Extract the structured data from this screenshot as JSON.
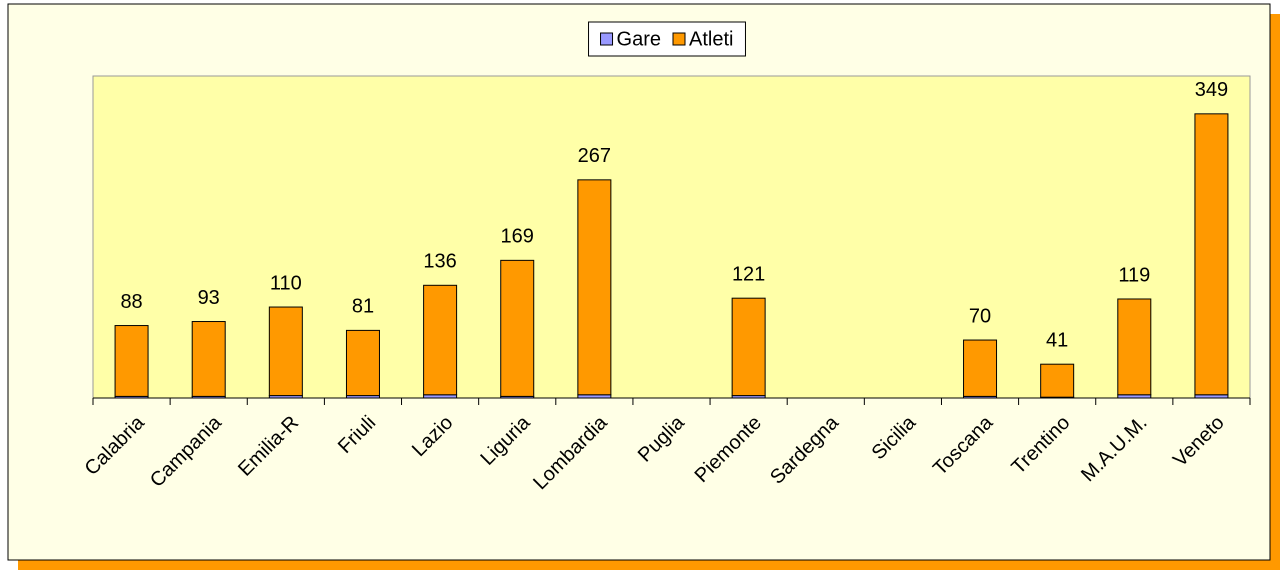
{
  "chart_data": {
    "type": "stacked_bar",
    "categories": [
      "Calabria",
      "Campania",
      "Emilia-R",
      "Friuli",
      "Lazio",
      "Liguria",
      "Lombardia",
      "Puglia",
      "Piemonte",
      "Sardegna",
      "Sicilia",
      "Toscana",
      "Trentino",
      "M.A.U.M.",
      "Veneto"
    ],
    "series": [
      {
        "name": "Gare",
        "color": "#9999ff",
        "values": [
          2,
          2,
          3,
          3,
          4,
          2,
          4,
          null,
          3,
          null,
          null,
          2,
          1,
          4,
          4
        ]
      },
      {
        "name": "Atleti",
        "color": "#ff9900",
        "values": [
          88,
          93,
          110,
          81,
          136,
          169,
          267,
          null,
          121,
          null,
          null,
          70,
          41,
          119,
          349
        ]
      }
    ],
    "ylim": [
      0,
      400
    ],
    "legend": "top"
  }
}
